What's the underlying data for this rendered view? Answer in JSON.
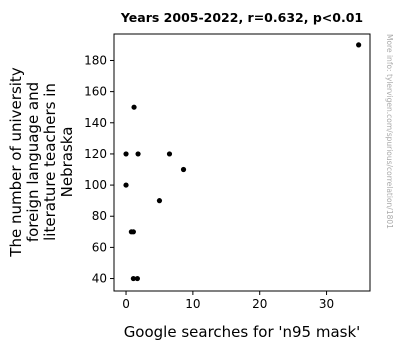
{
  "chart_data": {
    "type": "scatter",
    "title": "Years 2005-2022, r=0.632, p<0.01",
    "xlabel": "Google searches for 'n95 mask'",
    "ylabel": "The number of university foreign language and literature teachers in Nebraska",
    "ylabel_lines": [
      "The number of university",
      "foreign language and",
      "literature teachers in",
      "Nebraska"
    ],
    "watermark": "More info: tylervigen.com/spurious/correlation/1801",
    "xlim": [
      -1.8,
      36.5
    ],
    "ylim": [
      32,
      197
    ],
    "x_ticks": [
      0,
      10,
      20,
      30
    ],
    "y_ticks": [
      40,
      60,
      80,
      100,
      120,
      140,
      160,
      180
    ],
    "point_color": "#000000",
    "points": [
      {
        "x": 0.0,
        "y": 100
      },
      {
        "x": 0.0,
        "y": 120
      },
      {
        "x": 0.8,
        "y": 70
      },
      {
        "x": 1.1,
        "y": 70
      },
      {
        "x": 1.1,
        "y": 40
      },
      {
        "x": 1.2,
        "y": 150
      },
      {
        "x": 1.7,
        "y": 40
      },
      {
        "x": 1.8,
        "y": 120
      },
      {
        "x": 5.0,
        "y": 90
      },
      {
        "x": 6.5,
        "y": 120
      },
      {
        "x": 8.6,
        "y": 110
      },
      {
        "x": 34.8,
        "y": 190
      }
    ]
  }
}
